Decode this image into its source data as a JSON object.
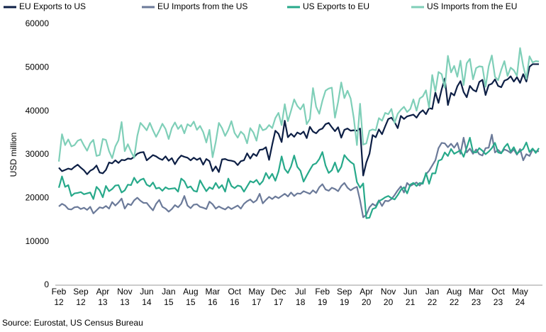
{
  "chart_data": {
    "type": "line",
    "ylabel": "USD million",
    "source": "Source: Eurostat, US Census Bureau",
    "ylim": [
      0,
      60000
    ],
    "yticks": [
      0,
      10000,
      20000,
      30000,
      40000,
      50000,
      60000
    ],
    "grid": false,
    "categories": [
      "Feb 12",
      null,
      null,
      null,
      null,
      null,
      null,
      "Sep 12",
      null,
      null,
      null,
      null,
      null,
      null,
      "Apr 13",
      null,
      null,
      null,
      null,
      null,
      null,
      "Nov 13",
      null,
      null,
      null,
      null,
      null,
      null,
      "Jun 14",
      null,
      null,
      null,
      null,
      null,
      null,
      "Jan 15",
      null,
      null,
      null,
      null,
      null,
      null,
      "Aug 15",
      null,
      null,
      null,
      null,
      null,
      null,
      "Mar 16",
      null,
      null,
      null,
      null,
      null,
      null,
      "Oct 16",
      null,
      null,
      null,
      null,
      null,
      null,
      "May 17",
      null,
      null,
      null,
      null,
      null,
      null,
      "Dec 17",
      null,
      null,
      null,
      null,
      null,
      null,
      "Jul 18",
      null,
      null,
      null,
      null,
      null,
      null,
      "Feb 19",
      null,
      null,
      null,
      null,
      null,
      null,
      "Sep 19",
      null,
      null,
      null,
      null,
      null,
      null,
      "Apr 20",
      null,
      null,
      null,
      null,
      null,
      null,
      "Nov 20",
      null,
      null,
      null,
      null,
      null,
      null,
      "Jun 21",
      null,
      null,
      null,
      null,
      null,
      null,
      "Jan 22",
      null,
      null,
      null,
      null,
      null,
      null,
      "Aug 22",
      null,
      null,
      null,
      null,
      null,
      null,
      "Mar 23",
      null,
      null,
      null,
      null,
      null,
      null,
      "Oct 23",
      null,
      null,
      null,
      null,
      null,
      null,
      "May 24",
      null,
      null,
      null,
      null,
      null,
      null
    ],
    "series": [
      {
        "name": "EU Exports to US",
        "color": "#0d1f45",
        "values": [
          27000,
          26200,
          26500,
          26800,
          26600,
          27200,
          27700,
          27000,
          26400,
          25500,
          26300,
          26700,
          27500,
          25900,
          25700,
          26500,
          28200,
          28000,
          28700,
          28100,
          28800,
          28700,
          29100,
          29000,
          29500,
          30200,
          30500,
          30600,
          28700,
          29300,
          29900,
          29600,
          29100,
          28800,
          29600,
          28600,
          29200,
          27800,
          29000,
          29800,
          29500,
          29300,
          28700,
          29300,
          28800,
          29200,
          27700,
          29000,
          28500,
          26200,
          27300,
          26000,
          28900,
          29000,
          28700,
          28600,
          28400,
          27600,
          28500,
          28700,
          30300,
          29100,
          30200,
          29700,
          31100,
          31200,
          31700,
          28800,
          32300,
          35500,
          34800,
          32900,
          37800,
          34000,
          34800,
          34100,
          35100,
          34700,
          35300,
          33800,
          36400,
          35300,
          34900,
          35700,
          36000,
          37000,
          37300,
          36300,
          35400,
          36300,
          33900,
          35700,
          36000,
          35500,
          35600,
          35500,
          36000,
          25200,
          28200,
          30200,
          34500,
          34000,
          35800,
          34700,
          36500,
          38200,
          38500,
          37500,
          36100,
          38900,
          38200,
          38800,
          39000,
          39200,
          38500,
          39600,
          40200,
          39300,
          40700,
          40500,
          44300,
          41900,
          45000,
          47500,
          41400,
          44200,
          43600,
          45700,
          46900,
          44400,
          43200,
          45800,
          44900,
          44500,
          46700,
          47200,
          43700,
          46000,
          46300,
          47300,
          45800,
          45500,
          47000,
          47300,
          48000,
          46800,
          47800,
          46500,
          48500,
          46800,
          50200,
          50800,
          50800,
          50800
        ]
      },
      {
        "name": "EU Imports from the US",
        "color": "#6b7a99",
        "values": [
          18100,
          18700,
          18300,
          17500,
          17400,
          17900,
          18000,
          17500,
          17800,
          17300,
          18000,
          16500,
          17200,
          17900,
          17700,
          18200,
          17600,
          19100,
          18300,
          19000,
          19900,
          17600,
          18700,
          18400,
          19500,
          20100,
          19400,
          18900,
          18900,
          18000,
          17200,
          18700,
          19600,
          18000,
          17600,
          16900,
          17500,
          18400,
          17900,
          18700,
          20500,
          18300,
          17700,
          18500,
          18600,
          18000,
          17800,
          17500,
          19200,
          18600,
          17600,
          18100,
          17700,
          17400,
          18000,
          17500,
          17900,
          18300,
          17600,
          18700,
          19300,
          19700,
          19000,
          19500,
          21000,
          18800,
          19600,
          20300,
          19800,
          20400,
          20000,
          20500,
          21000,
          20400,
          21300,
          20500,
          21100,
          21000,
          21600,
          21300,
          21000,
          21800,
          21200,
          22500,
          23200,
          22000,
          21700,
          22400,
          22100,
          21600,
          22800,
          23500,
          22400,
          21800,
          22300,
          22600,
          19500,
          15600,
          16200,
          17900,
          18700,
          18200,
          19500,
          18200,
          19400,
          19300,
          19800,
          20700,
          21800,
          22700,
          21300,
          23500,
          22800,
          23200,
          23600,
          22900,
          23700,
          25500,
          26300,
          27500,
          28700,
          31500,
          32700,
          32600,
          31700,
          32500,
          31600,
          32700,
          30200,
          33900,
          30500,
          31400,
          30200,
          31200,
          30100,
          29800,
          31500,
          31600,
          34600,
          30500,
          31100,
          30400,
          31200,
          30900,
          30400,
          31200,
          30000,
          31300,
          28700,
          30100,
          29700,
          31200,
          30700,
          30800
        ]
      },
      {
        "name": "US Exports to EU",
        "color": "#27a98a",
        "values": [
          22400,
          25000,
          22600,
          23000,
          20500,
          21100,
          21200,
          21400,
          20900,
          21100,
          21300,
          19800,
          22600,
          21800,
          20200,
          22800,
          21600,
          22100,
          22900,
          23000,
          21300,
          21800,
          23100,
          23000,
          24700,
          23500,
          24200,
          24500,
          23100,
          22700,
          23600,
          22200,
          22400,
          21700,
          22500,
          22100,
          22200,
          22300,
          21500,
          24500,
          23900,
          22400,
          22700,
          21700,
          21500,
          24100,
          22800,
          21600,
          22500,
          22100,
          23500,
          22300,
          23000,
          21500,
          24500,
          22800,
          22300,
          22900,
          22700,
          21500,
          22700,
          23900,
          23600,
          24200,
          23100,
          23900,
          25800,
          24500,
          25600,
          24000,
          26100,
          29600,
          26700,
          25800,
          27300,
          29800,
          27200,
          26300,
          23800,
          25200,
          26500,
          27700,
          28000,
          29000,
          30600,
          27500,
          25800,
          26400,
          28200,
          26000,
          27200,
          29900,
          29000,
          28300,
          27800,
          23700,
          22400,
          23400,
          15400,
          15500,
          17500,
          17800,
          19300,
          19700,
          20200,
          20500,
          20000,
          19700,
          20700,
          21900,
          22500,
          21100,
          23100,
          23500,
          22800,
          23500,
          23300,
          25800,
          23300,
          25700,
          25700,
          28600,
          28900,
          30500,
          29700,
          31300,
          30200,
          30600,
          31000,
          29500,
          31600,
          33900,
          30600,
          30500,
          31500,
          30900,
          30100,
          30700,
          31500,
          32700,
          30500,
          30300,
          31700,
          32500,
          30700,
          31700,
          30200,
          30800,
          31300,
          32800,
          30600,
          31400,
          30400,
          31500
        ]
      },
      {
        "name": "US Imports from the EU",
        "color": "#7fcfb8",
        "values": [
          28400,
          34700,
          32200,
          33500,
          31900,
          32200,
          33200,
          33500,
          32100,
          30900,
          32600,
          33400,
          29700,
          29900,
          33600,
          33400,
          30800,
          29200,
          31900,
          33300,
          37500,
          30800,
          32400,
          30700,
          29300,
          34300,
          37300,
          36500,
          35600,
          37300,
          35600,
          34100,
          35500,
          37100,
          35900,
          33600,
          36100,
          37400,
          35900,
          36800,
          34900,
          37000,
          36500,
          37600,
          35700,
          36600,
          35200,
          32800,
          35700,
          29400,
          32900,
          37300,
          36100,
          34300,
          35700,
          37700,
          35000,
          33900,
          35300,
          34600,
          32600,
          36100,
          35100,
          33200,
          36900,
          35600,
          35900,
          36800,
          36100,
          38400,
          39600,
          36800,
          41600,
          37700,
          40100,
          42700,
          41200,
          40400,
          41600,
          37000,
          38200,
          45300,
          41000,
          39400,
          42400,
          44700,
          45200,
          45400,
          38500,
          42100,
          46600,
          43000,
          44700,
          42900,
          38400,
          32200,
          41700,
          32300,
          32600,
          35500,
          35800,
          35600,
          38400,
          37800,
          39600,
          39300,
          40500,
          37300,
          39400,
          40300,
          41000,
          39800,
          40500,
          42700,
          40100,
          42900,
          43400,
          44800,
          40800,
          48300,
          44500,
          49000,
          48500,
          45400,
          52700,
          48900,
          50400,
          47900,
          51600,
          46000,
          51000,
          52000,
          47300,
          49900,
          50300,
          50200,
          45600,
          50300,
          52800,
          47900,
          47100,
          49500,
          51500,
          48100,
          50000,
          49400,
          48100,
          54500,
          50400,
          47400,
          52600,
          51200,
          51500,
          51400
        ]
      }
    ]
  }
}
